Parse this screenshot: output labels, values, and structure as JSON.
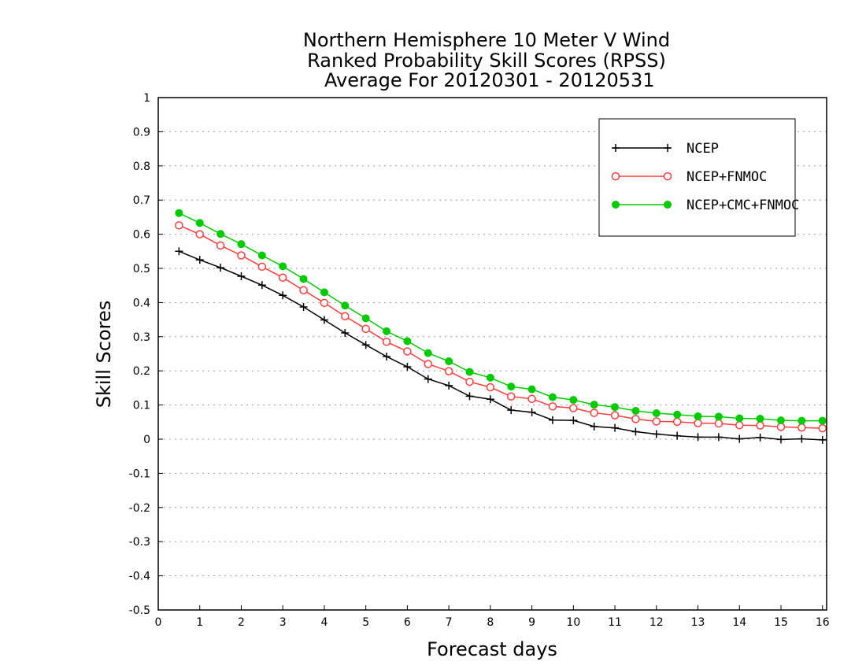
{
  "chart_data": {
    "type": "line",
    "title": [
      "Northern Hemisphere 10 Meter V Wind",
      "Ranked Probability Skill Scores (RPSS)",
      " Average For 20120301 - 20120531"
    ],
    "xlabel": "Forecast days",
    "ylabel": "Skill Scores",
    "xlim": [
      0,
      16.1
    ],
    "ylim": [
      -0.5,
      1
    ],
    "xticks": [
      0,
      1,
      2,
      3,
      4,
      5,
      6,
      7,
      8,
      9,
      10,
      11,
      12,
      13,
      14,
      15,
      16
    ],
    "yticks": [
      -0.5,
      -0.4,
      -0.3,
      -0.2,
      -0.1,
      0,
      0.1,
      0.2,
      0.3,
      0.4,
      0.5,
      0.6,
      0.7,
      0.8,
      0.9,
      1
    ],
    "ytick_labels": [
      "-0.5",
      "-0.4",
      "-0.3",
      "-0.2",
      "-0.1",
      "0",
      "0.1",
      "0.2",
      "0.3",
      "0.4",
      "0.5",
      "0.6",
      "0.7",
      "0.8",
      "0.9",
      "1"
    ],
    "grid": true,
    "legend_position": "top-right",
    "x": [
      0.5,
      1,
      1.5,
      2,
      2.5,
      3,
      3.5,
      4,
      4.5,
      5,
      5.5,
      6,
      6.5,
      7,
      7.5,
      8,
      8.5,
      9,
      9.5,
      10,
      10.5,
      11,
      11.5,
      12,
      12.5,
      13,
      13.5,
      14,
      14.5,
      15,
      15.5,
      16
    ],
    "series": [
      {
        "name": "NCEP",
        "color": "#000000",
        "marker": "plus",
        "values": [
          0.55,
          0.525,
          0.502,
          0.477,
          0.451,
          0.421,
          0.387,
          0.349,
          0.311,
          0.276,
          0.242,
          0.212,
          0.176,
          0.157,
          0.126,
          0.117,
          0.085,
          0.079,
          0.056,
          0.055,
          0.037,
          0.033,
          0.022,
          0.015,
          0.01,
          0.006,
          0.006,
          0.001,
          0.005,
          -0.001,
          0.001,
          -0.002
        ]
      },
      {
        "name": "NCEP+FNMOC",
        "color": "#ff3b3b",
        "marker": "open-circle",
        "values": [
          0.626,
          0.6,
          0.567,
          0.538,
          0.505,
          0.473,
          0.436,
          0.399,
          0.36,
          0.323,
          0.285,
          0.257,
          0.22,
          0.199,
          0.168,
          0.152,
          0.125,
          0.118,
          0.096,
          0.091,
          0.077,
          0.07,
          0.059,
          0.052,
          0.051,
          0.047,
          0.046,
          0.041,
          0.04,
          0.036,
          0.034,
          0.032
        ]
      },
      {
        "name": "NCEP+CMC+FNMOC",
        "color": "#00cc00",
        "marker": "filled-circle",
        "values": [
          0.662,
          0.633,
          0.601,
          0.571,
          0.538,
          0.506,
          0.469,
          0.43,
          0.391,
          0.354,
          0.316,
          0.287,
          0.252,
          0.228,
          0.197,
          0.18,
          0.154,
          0.146,
          0.123,
          0.115,
          0.101,
          0.094,
          0.083,
          0.076,
          0.072,
          0.067,
          0.066,
          0.061,
          0.06,
          0.055,
          0.054,
          0.054
        ]
      }
    ]
  }
}
